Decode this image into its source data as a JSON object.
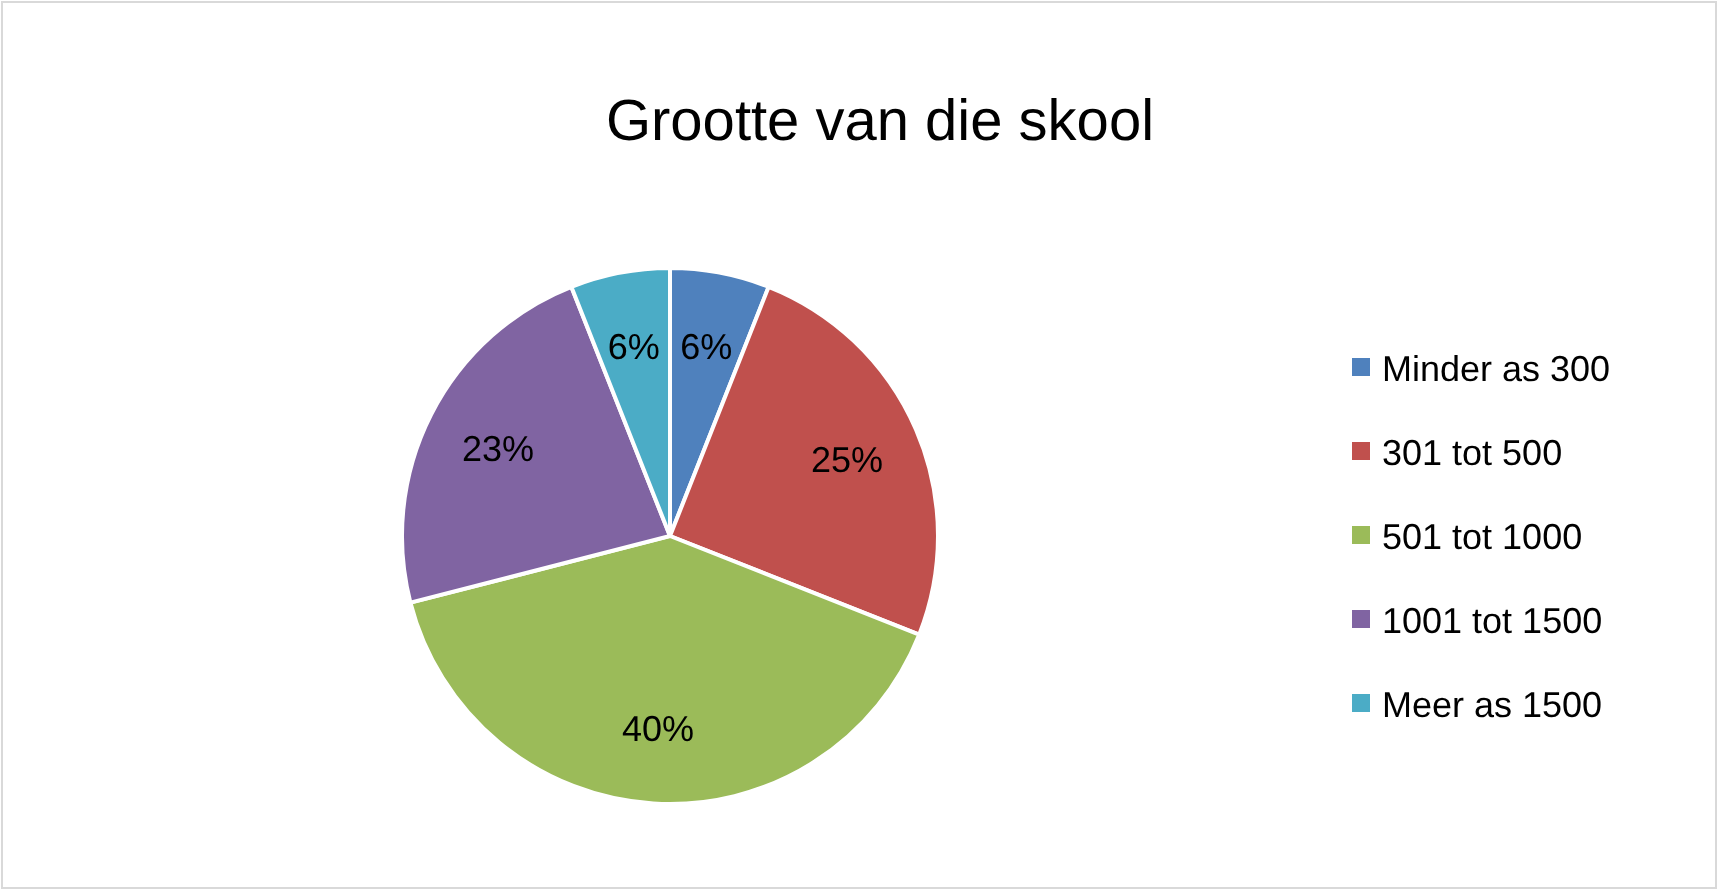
{
  "chart_data": {
    "type": "pie",
    "title": "Grootte van die skool",
    "categories": [
      "Minder as 300",
      "301 tot 500",
      "501 tot 1000",
      "1001 tot 1500",
      "Meer as 1500"
    ],
    "values": [
      6,
      25,
      40,
      23,
      6
    ],
    "colors": [
      "#4f81bd",
      "#c0504d",
      "#9bbb59",
      "#8064a2",
      "#4bacc6"
    ],
    "value_labels": [
      "6%",
      "25%",
      "40%",
      "23%",
      "6%"
    ],
    "legend": "right"
  }
}
